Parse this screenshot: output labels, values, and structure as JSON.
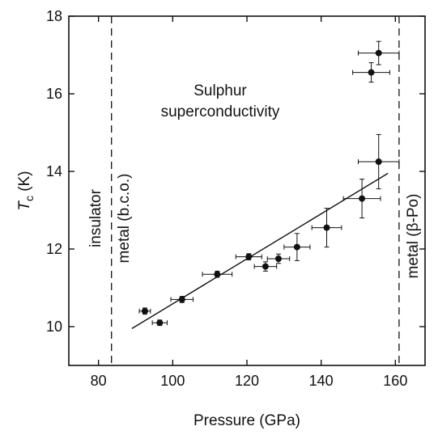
{
  "chart_data": {
    "type": "scatter",
    "title": "",
    "annotation": "Sulphur superconductivity",
    "annotation_lines": [
      "Sulphur",
      "superconductivity"
    ],
    "xlabel": "Pressure (GPa)",
    "ylabel": {
      "main": "T",
      "subscript": "c",
      "unit": " (K)"
    },
    "xlim": [
      72,
      168
    ],
    "ylim": [
      9,
      18
    ],
    "xticks": [
      80,
      100,
      120,
      140,
      160
    ],
    "yticks": [
      10,
      12,
      14,
      16,
      18
    ],
    "grid": false,
    "points": [
      {
        "x": 92.5,
        "y": 10.4,
        "xerr": 1.5,
        "yerr": 0.08
      },
      {
        "x": 96.5,
        "y": 10.1,
        "xerr": 2,
        "yerr": 0.07
      },
      {
        "x": 102.5,
        "y": 10.7,
        "xerr": 3,
        "yerr": 0.08
      },
      {
        "x": 112,
        "y": 11.35,
        "xerr": 4,
        "yerr": 0.08
      },
      {
        "x": 120.5,
        "y": 11.8,
        "xerr": 3.5,
        "yerr": 0.08
      },
      {
        "x": 125,
        "y": 11.55,
        "xerr": 3,
        "yerr": 0.12
      },
      {
        "x": 128.5,
        "y": 11.75,
        "xerr": 3,
        "yerr": 0.12
      },
      {
        "x": 133.5,
        "y": 12.05,
        "xerr": 3.5,
        "yerr": 0.35
      },
      {
        "x": 141.5,
        "y": 12.55,
        "xerr": 4,
        "yerr": 0.5
      },
      {
        "x": 151,
        "y": 13.3,
        "xerr": 5,
        "yerr": 0.5
      },
      {
        "x": 155.5,
        "y": 14.25,
        "xerr": 5.5,
        "yerr": 0.7
      },
      {
        "x": 153.5,
        "y": 16.55,
        "xerr": 5,
        "yerr": 0.25
      },
      {
        "x": 155.5,
        "y": 17.05,
        "xerr": 5.5,
        "yerr": 0.3
      }
    ],
    "fit_line": {
      "x": [
        89,
        158
      ],
      "y": [
        9.95,
        13.95
      ]
    },
    "boundaries": [
      {
        "x": 83.5,
        "label": "insulator",
        "label_side": "left"
      },
      {
        "x": 84,
        "label": "metal (b.c.o.)",
        "label_side": "right"
      },
      {
        "x": 161,
        "label": "metal (β-Po)",
        "label_side": "right"
      }
    ]
  }
}
